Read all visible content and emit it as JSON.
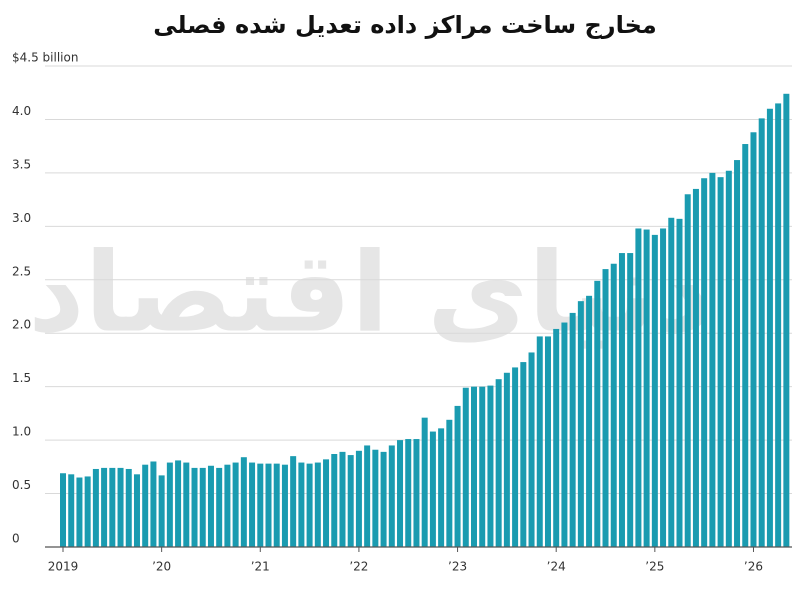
{
  "chart_data": {
    "type": "bar",
    "title": "مخارج ساخت مراکز داده تعدیل شده فصلی",
    "watermark": "دنیای اقتصاد",
    "color": "#1a9bb0",
    "grid": true,
    "ylim": [
      0,
      4.5
    ],
    "yticks": [
      0,
      0.5,
      {
        "value": 1,
        "label": "1.0"
      },
      1.5,
      {
        "value": 2,
        "label": "2.0"
      },
      2.5,
      {
        "value": 3,
        "label": "3.0"
      },
      3.5,
      {
        "value": 4,
        "label": "4.0"
      },
      {
        "value": 4.5,
        "label": "$4.5 billion"
      }
    ],
    "categories": [
      "2019",
      null,
      null,
      null,
      null,
      null,
      null,
      null,
      null,
      null,
      null,
      null,
      "’20",
      null,
      null,
      null,
      null,
      null,
      null,
      null,
      null,
      null,
      null,
      null,
      "’21",
      null,
      null,
      null,
      null,
      null,
      null,
      null,
      null,
      null,
      null,
      null,
      "’22",
      null,
      null,
      null,
      null,
      null,
      null,
      null,
      null,
      null,
      null,
      null,
      "’23",
      null,
      null,
      null,
      null,
      null,
      null,
      null,
      null,
      null,
      null,
      null,
      "’24",
      null,
      null,
      null,
      null,
      null,
      null,
      null,
      null,
      null,
      null,
      null,
      "’25",
      null,
      null,
      null,
      null,
      null,
      null,
      null,
      null,
      null,
      null,
      null,
      "’26",
      null,
      null,
      null,
      null
    ],
    "values": [
      0.69,
      0.68,
      0.65,
      0.66,
      0.73,
      0.74,
      0.74,
      0.74,
      0.73,
      0.68,
      0.77,
      0.8,
      0.67,
      0.79,
      0.81,
      0.79,
      0.74,
      0.74,
      0.76,
      0.74,
      0.77,
      0.79,
      0.84,
      0.79,
      0.78,
      0.78,
      0.78,
      0.77,
      0.85,
      0.79,
      0.78,
      0.79,
      0.82,
      0.87,
      0.89,
      0.86,
      0.9,
      0.95,
      0.91,
      0.89,
      0.95,
      1.0,
      1.01,
      1.01,
      1.21,
      1.08,
      1.11,
      1.19,
      1.32,
      1.49,
      1.5,
      1.5,
      1.51,
      1.57,
      1.63,
      1.68,
      1.73,
      1.82,
      1.97,
      1.97,
      2.04,
      2.1,
      2.19,
      2.3,
      2.35,
      2.49,
      2.6,
      2.65,
      2.75,
      2.75,
      2.98,
      2.97,
      2.92,
      2.98,
      3.08,
      3.07,
      3.3,
      3.35,
      3.45,
      3.5,
      3.46,
      3.52,
      3.62,
      3.77,
      3.88,
      4.01,
      4.1,
      4.15,
      4.24
    ]
  }
}
